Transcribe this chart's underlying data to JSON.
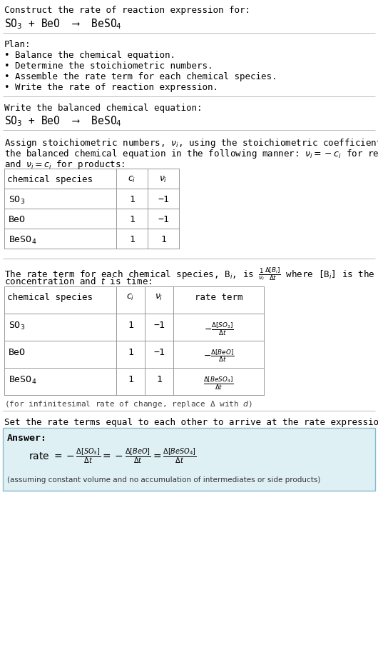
{
  "title_line1": "Construct the rate of reaction expression for:",
  "title_line2": "SO$_3$ + BeO  ⟶  BeSO$_4$",
  "plan_header": "Plan:",
  "plan_items": [
    "• Balance the chemical equation.",
    "• Determine the stoichiometric numbers.",
    "• Assemble the rate term for each chemical species.",
    "• Write the rate of reaction expression."
  ],
  "section2_header": "Write the balanced chemical equation:",
  "section2_eq": "SO$_3$ + BeO  ⟶  BeSO$_4$",
  "section3_header1": "Assign stoichiometric numbers, $\\nu_i$, using the stoichiometric coefficients, $c_i$, from",
  "section3_header2": "the balanced chemical equation in the following manner: $\\nu_i = -c_i$ for reactants",
  "section3_header3": "and $\\nu_i = c_i$ for products:",
  "table1_headers": [
    "chemical species",
    "$c_i$",
    "$\\nu_i$"
  ],
  "table1_rows": [
    [
      "SO$_3$",
      "1",
      "−1"
    ],
    [
      "BeO",
      "1",
      "−1"
    ],
    [
      "BeSO$_4$",
      "1",
      "1"
    ]
  ],
  "section4_header1": "The rate term for each chemical species, B$_i$, is $\\frac{1}{\\nu_i}\\frac{\\Delta[B_i]}{\\Delta t}$ where [B$_i$] is the amount",
  "section4_header2": "concentration and $t$ is time:",
  "table2_headers": [
    "chemical species",
    "$c_i$",
    "$\\nu_i$",
    "rate term"
  ],
  "table2_rows": [
    [
      "SO$_3$",
      "1",
      "−1",
      "$-\\frac{\\Delta[SO_3]}{\\Delta t}$"
    ],
    [
      "BeO",
      "1",
      "−1",
      "$-\\frac{\\Delta[BeO]}{\\Delta t}$"
    ],
    [
      "BeSO$_4$",
      "1",
      "1",
      "$\\frac{\\Delta[BeSO_4]}{\\Delta t}$"
    ]
  ],
  "table2_footnote": "(for infinitesimal rate of change, replace Δ with $d$)",
  "section5_header": "Set the rate terms equal to each other to arrive at the rate expression:",
  "answer_label": "Answer:",
  "answer_eq": "rate $= -\\frac{\\Delta[SO_3]}{\\Delta t} = -\\frac{\\Delta[BeO]}{\\Delta t} = \\frac{\\Delta[BeSO_4]}{\\Delta t}$",
  "answer_footnote": "(assuming constant volume and no accumulation of intermediates or side products)",
  "bg_color": "#ffffff",
  "answer_bg_color": "#dff0f5",
  "table_border_color": "#999999",
  "sep_color": "#bbbbbb",
  "mono_font": "DejaVu Sans Mono",
  "text_color": "#000000"
}
